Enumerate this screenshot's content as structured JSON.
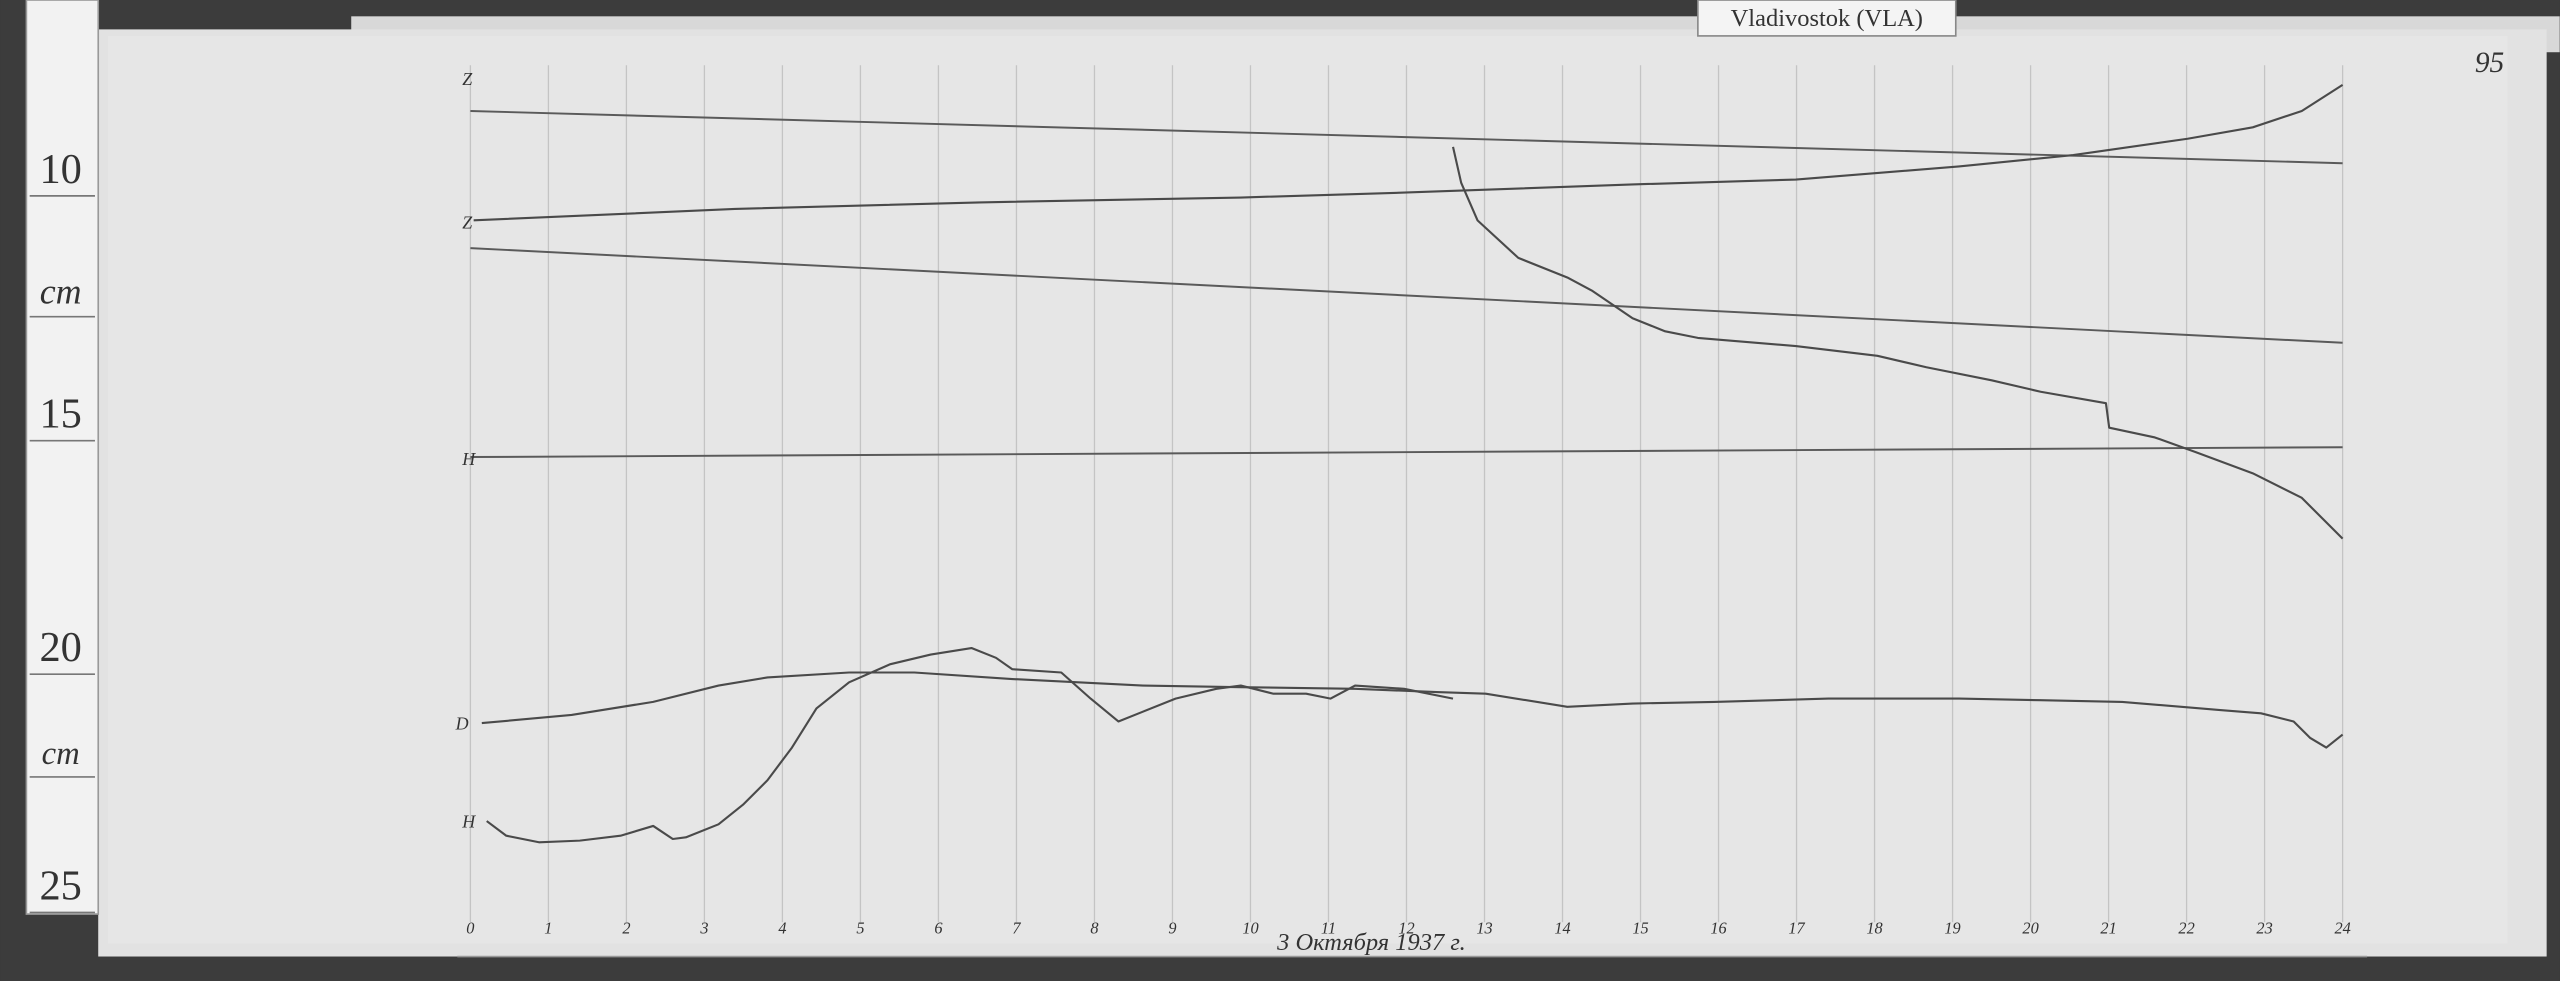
{
  "station_label": "Vladivostok (VLA)",
  "sheet_number": "95",
  "ruler": {
    "labels": [
      "10",
      "cm",
      "15",
      "20",
      "cm",
      "25"
    ]
  },
  "trace_labels": [
    "Z",
    "Z",
    "H",
    "D",
    "H"
  ],
  "hour_labels": [
    "0",
    "1",
    "2",
    "3",
    "4",
    "5",
    "6",
    "7",
    "8",
    "9",
    "10",
    "11",
    "12",
    "13",
    "14",
    "15",
    "16",
    "17",
    "18",
    "19",
    "20",
    "21",
    "22",
    "23",
    "24"
  ],
  "date_note": "3 Октября 1937 г."
}
